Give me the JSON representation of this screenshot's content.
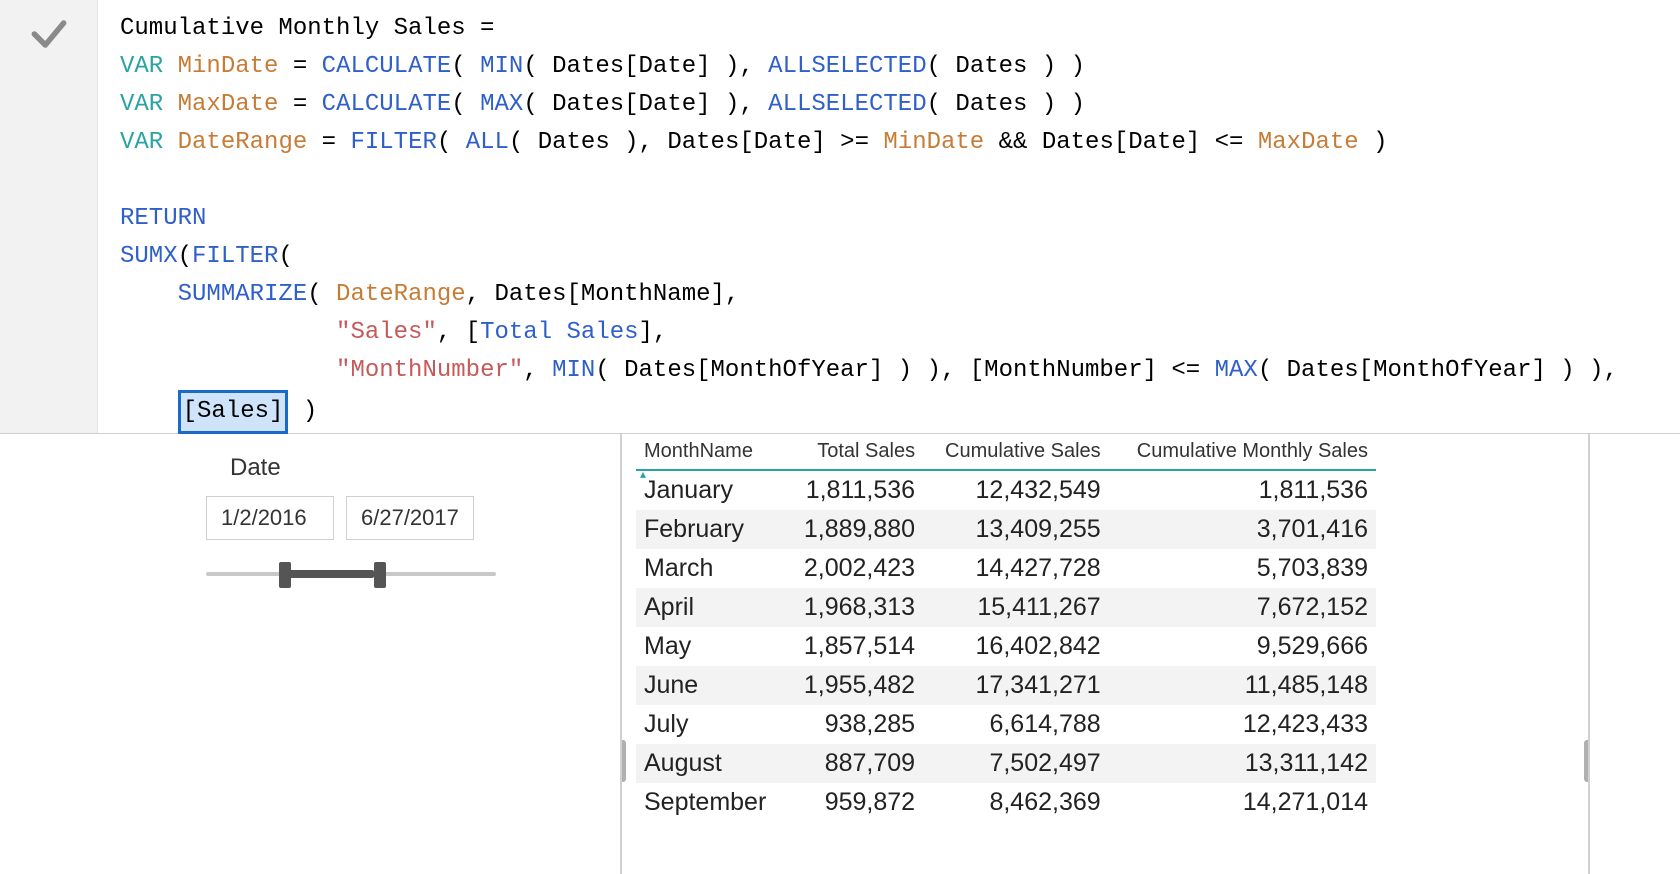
{
  "colors": {
    "keyword": "#2ba3a3",
    "varname": "#c77c36",
    "func": "#2f5fc9",
    "string": "#c55a5a",
    "plain": "#000000",
    "highlight_bg": "#cfe4fb",
    "highlight_border": "#1a6ac8",
    "header_underline": "#2ba3a3",
    "row_alt_bg": "#f3f3f3",
    "check_gray": "#8a8a8a",
    "slider_gray": "#555555"
  },
  "bleed_title": "Cum",
  "formula": {
    "lines": [
      [
        {
          "t": "Cumulative Monthly Sales = ",
          "c": "plain"
        }
      ],
      [
        {
          "t": "VAR",
          "c": "keyword"
        },
        {
          "t": " ",
          "c": "plain"
        },
        {
          "t": "MinDate",
          "c": "varname"
        },
        {
          "t": " = ",
          "c": "plain"
        },
        {
          "t": "CALCULATE",
          "c": "func"
        },
        {
          "t": "( ",
          "c": "plain"
        },
        {
          "t": "MIN",
          "c": "func"
        },
        {
          "t": "( Dates[Date] ), ",
          "c": "plain"
        },
        {
          "t": "ALLSELECTED",
          "c": "func"
        },
        {
          "t": "( Dates ) )",
          "c": "plain"
        }
      ],
      [
        {
          "t": "VAR",
          "c": "keyword"
        },
        {
          "t": " ",
          "c": "plain"
        },
        {
          "t": "MaxDate",
          "c": "varname"
        },
        {
          "t": " = ",
          "c": "plain"
        },
        {
          "t": "CALCULATE",
          "c": "func"
        },
        {
          "t": "( ",
          "c": "plain"
        },
        {
          "t": "MAX",
          "c": "func"
        },
        {
          "t": "( Dates[Date] ), ",
          "c": "plain"
        },
        {
          "t": "ALLSELECTED",
          "c": "func"
        },
        {
          "t": "( Dates ) )",
          "c": "plain"
        }
      ],
      [
        {
          "t": "VAR",
          "c": "keyword"
        },
        {
          "t": " ",
          "c": "plain"
        },
        {
          "t": "DateRange",
          "c": "varname"
        },
        {
          "t": " = ",
          "c": "plain"
        },
        {
          "t": "FILTER",
          "c": "func"
        },
        {
          "t": "( ",
          "c": "plain"
        },
        {
          "t": "ALL",
          "c": "func"
        },
        {
          "t": "( Dates ), Dates[Date] >= ",
          "c": "plain"
        },
        {
          "t": "MinDate",
          "c": "varname"
        },
        {
          "t": " && Dates[Date] <= ",
          "c": "plain"
        },
        {
          "t": "MaxDate",
          "c": "varname"
        },
        {
          "t": " )",
          "c": "plain"
        }
      ],
      [],
      [
        {
          "t": "RETURN",
          "c": "func"
        }
      ],
      [
        {
          "t": "SUMX",
          "c": "func"
        },
        {
          "t": "(",
          "c": "plain"
        },
        {
          "t": "FILTER",
          "c": "func"
        },
        {
          "t": "(",
          "c": "plain"
        }
      ],
      [
        {
          "t": "    ",
          "c": "plain"
        },
        {
          "t": "SUMMARIZE",
          "c": "func"
        },
        {
          "t": "( ",
          "c": "plain"
        },
        {
          "t": "DateRange",
          "c": "varname"
        },
        {
          "t": ", Dates[MonthName],",
          "c": "plain"
        }
      ],
      [
        {
          "t": "               ",
          "c": "plain"
        },
        {
          "t": "\"Sales\"",
          "c": "string"
        },
        {
          "t": ", [",
          "c": "plain"
        },
        {
          "t": "Total Sales",
          "c": "measure"
        },
        {
          "t": "],",
          "c": "plain"
        }
      ],
      [
        {
          "t": "               ",
          "c": "plain"
        },
        {
          "t": "\"MonthNumber\"",
          "c": "string"
        },
        {
          "t": ", ",
          "c": "plain"
        },
        {
          "t": "MIN",
          "c": "func"
        },
        {
          "t": "( Dates[MonthOfYear] ) ), [MonthNumber] <= ",
          "c": "plain"
        },
        {
          "t": "MAX",
          "c": "func"
        },
        {
          "t": "( Dates[MonthOfYear] ) ),",
          "c": "plain"
        }
      ],
      [
        {
          "t": "    ",
          "c": "plain"
        },
        {
          "t": "[Sales]",
          "c": "highlight"
        },
        {
          "t": " )",
          "c": "plain"
        }
      ]
    ]
  },
  "slicer": {
    "label": "Date",
    "start": "1/2/2016",
    "end": "6/27/2017",
    "handle_left_pct": 25,
    "handle_right_pct": 58
  },
  "table": {
    "columns": [
      "MonthName",
      "Total Sales",
      "Cumulative Sales",
      "Cumulative Monthly Sales"
    ],
    "col_align": [
      "left",
      "right",
      "right",
      "right"
    ],
    "sort_col": 0,
    "rows": [
      [
        "January",
        "1,811,536",
        "12,432,549",
        "1,811,536"
      ],
      [
        "February",
        "1,889,880",
        "13,409,255",
        "3,701,416"
      ],
      [
        "March",
        "2,002,423",
        "14,427,728",
        "5,703,839"
      ],
      [
        "April",
        "1,968,313",
        "15,411,267",
        "7,672,152"
      ],
      [
        "May",
        "1,857,514",
        "16,402,842",
        "9,529,666"
      ],
      [
        "June",
        "1,955,482",
        "17,341,271",
        "11,485,148"
      ],
      [
        "July",
        "938,285",
        "6,614,788",
        "12,423,433"
      ],
      [
        "August",
        "887,709",
        "7,502,497",
        "13,311,142"
      ],
      [
        "September",
        "959,872",
        "8,462,369",
        "14,271,014"
      ]
    ],
    "alt_row_indices": [
      1,
      3,
      5,
      7
    ]
  }
}
